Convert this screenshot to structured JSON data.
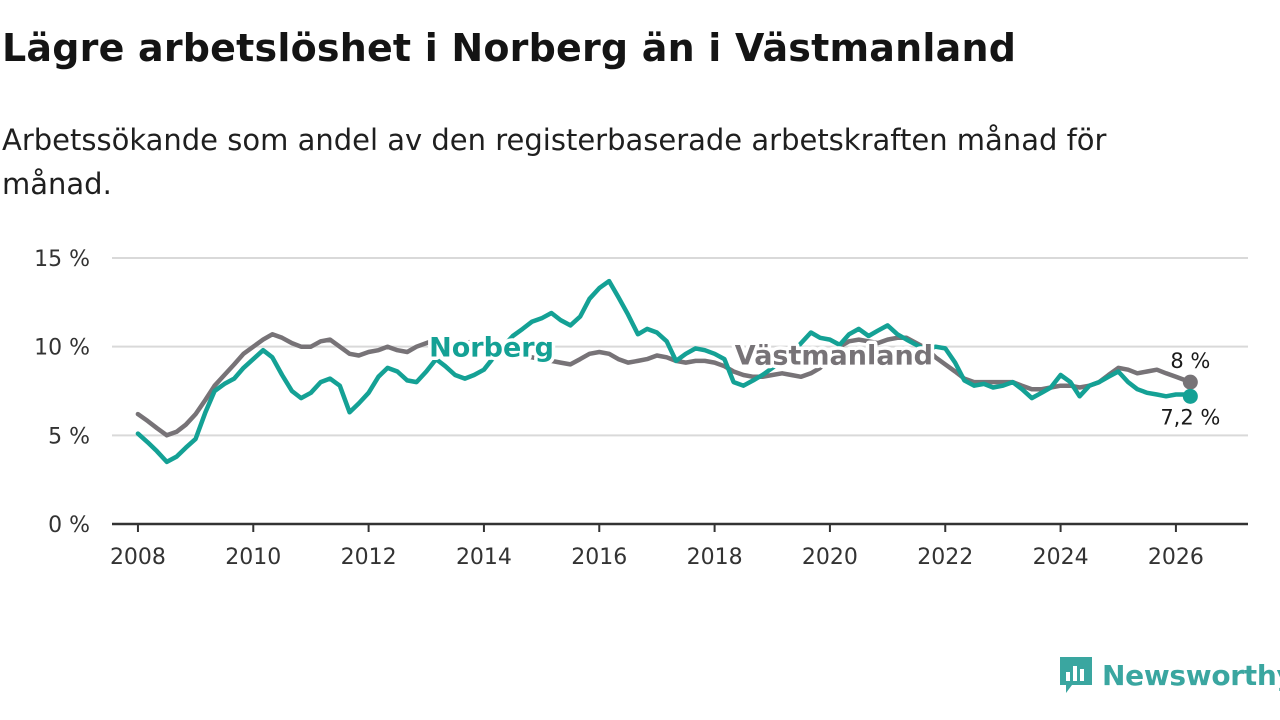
{
  "title": "Lägre arbetslöshet i Norberg än i Västmanland",
  "subtitle": "Arbetssökande som andel av den registerbaserade arbetskraften månad för månad.",
  "brand": {
    "name": "Newsworthy",
    "icon": "newsworthy-logo-icon",
    "color": "#3aa6a0"
  },
  "chart_data": {
    "type": "line",
    "title": "Lägre arbetslöshet i Norberg än i Västmanland",
    "xlabel": "",
    "ylabel": "",
    "ylim": [
      0,
      15
    ],
    "xlim": [
      2007.55,
      2027.25
    ],
    "grid": true,
    "yticks": [
      {
        "value": 0,
        "label": "0 %"
      },
      {
        "value": 5,
        "label": "5 %"
      },
      {
        "value": 10,
        "label": "10 %"
      },
      {
        "value": 15,
        "label": "15 %"
      }
    ],
    "xticks": [
      {
        "value": 2008,
        "label": "2008"
      },
      {
        "value": 2010,
        "label": "2010"
      },
      {
        "value": 2012,
        "label": "2012"
      },
      {
        "value": 2014,
        "label": "2014"
      },
      {
        "value": 2016,
        "label": "2016"
      },
      {
        "value": 2018,
        "label": "2018"
      },
      {
        "value": 2020,
        "label": "2020"
      },
      {
        "value": 2022,
        "label": "2022"
      },
      {
        "value": 2024,
        "label": "2024"
      },
      {
        "value": 2026,
        "label": "2026"
      }
    ],
    "series": [
      {
        "name": "Västmanland",
        "color": "#777377",
        "label": "Västmanland",
        "end_label": "8 %",
        "points": [
          [
            2008.0,
            6.2
          ],
          [
            2008.17,
            5.8
          ],
          [
            2008.33,
            5.4
          ],
          [
            2008.5,
            5.0
          ],
          [
            2008.67,
            5.2
          ],
          [
            2008.83,
            5.6
          ],
          [
            2009.0,
            6.2
          ],
          [
            2009.17,
            7.0
          ],
          [
            2009.33,
            7.8
          ],
          [
            2009.5,
            8.4
          ],
          [
            2009.67,
            9.0
          ],
          [
            2009.83,
            9.6
          ],
          [
            2010.0,
            10.0
          ],
          [
            2010.17,
            10.4
          ],
          [
            2010.33,
            10.7
          ],
          [
            2010.5,
            10.5
          ],
          [
            2010.67,
            10.2
          ],
          [
            2010.83,
            10.0
          ],
          [
            2011.0,
            10.0
          ],
          [
            2011.17,
            10.3
          ],
          [
            2011.33,
            10.4
          ],
          [
            2011.5,
            10.0
          ],
          [
            2011.67,
            9.6
          ],
          [
            2011.83,
            9.5
          ],
          [
            2012.0,
            9.7
          ],
          [
            2012.17,
            9.8
          ],
          [
            2012.33,
            10.0
          ],
          [
            2012.5,
            9.8
          ],
          [
            2012.67,
            9.7
          ],
          [
            2012.83,
            10.0
          ],
          [
            2013.0,
            10.2
          ],
          [
            2013.17,
            10.4
          ],
          [
            2013.33,
            10.3
          ],
          [
            2013.5,
            10.1
          ],
          [
            2013.67,
            10.2
          ],
          [
            2013.83,
            10.3
          ],
          [
            2014.0,
            10.2
          ],
          [
            2014.17,
            10.0
          ],
          [
            2014.33,
            9.9
          ],
          [
            2014.5,
            9.7
          ],
          [
            2014.67,
            9.5
          ],
          [
            2014.83,
            9.4
          ],
          [
            2015.0,
            9.3
          ],
          [
            2015.17,
            9.2
          ],
          [
            2015.33,
            9.1
          ],
          [
            2015.5,
            9.0
          ],
          [
            2015.67,
            9.3
          ],
          [
            2015.83,
            9.6
          ],
          [
            2016.0,
            9.7
          ],
          [
            2016.17,
            9.6
          ],
          [
            2016.33,
            9.3
          ],
          [
            2016.5,
            9.1
          ],
          [
            2016.67,
            9.2
          ],
          [
            2016.83,
            9.3
          ],
          [
            2017.0,
            9.5
          ],
          [
            2017.17,
            9.4
          ],
          [
            2017.33,
            9.2
          ],
          [
            2017.5,
            9.1
          ],
          [
            2017.67,
            9.2
          ],
          [
            2017.83,
            9.2
          ],
          [
            2018.0,
            9.1
          ],
          [
            2018.17,
            8.9
          ],
          [
            2018.33,
            8.6
          ],
          [
            2018.5,
            8.4
          ],
          [
            2018.67,
            8.3
          ],
          [
            2018.83,
            8.3
          ],
          [
            2019.0,
            8.4
          ],
          [
            2019.17,
            8.5
          ],
          [
            2019.33,
            8.4
          ],
          [
            2019.5,
            8.3
          ],
          [
            2019.67,
            8.5
          ],
          [
            2019.83,
            8.8
          ],
          [
            2020.0,
            9.4
          ],
          [
            2020.17,
            10.0
          ],
          [
            2020.33,
            10.3
          ],
          [
            2020.5,
            10.4
          ],
          [
            2020.67,
            10.3
          ],
          [
            2020.83,
            10.2
          ],
          [
            2021.0,
            10.4
          ],
          [
            2021.17,
            10.5
          ],
          [
            2021.33,
            10.5
          ],
          [
            2021.5,
            10.2
          ],
          [
            2021.67,
            9.9
          ],
          [
            2021.83,
            9.4
          ],
          [
            2022.0,
            9.0
          ],
          [
            2022.17,
            8.6
          ],
          [
            2022.33,
            8.2
          ],
          [
            2022.5,
            8.0
          ],
          [
            2022.67,
            8.0
          ],
          [
            2022.83,
            8.0
          ],
          [
            2023.0,
            8.0
          ],
          [
            2023.17,
            8.0
          ],
          [
            2023.33,
            7.8
          ],
          [
            2023.5,
            7.6
          ],
          [
            2023.67,
            7.6
          ],
          [
            2023.83,
            7.7
          ],
          [
            2024.0,
            7.8
          ],
          [
            2024.17,
            7.8
          ],
          [
            2024.33,
            7.7
          ],
          [
            2024.5,
            7.8
          ],
          [
            2024.67,
            8.0
          ],
          [
            2024.83,
            8.4
          ],
          [
            2025.0,
            8.8
          ],
          [
            2025.17,
            8.7
          ],
          [
            2025.33,
            8.5
          ],
          [
            2025.5,
            8.6
          ],
          [
            2025.67,
            8.7
          ],
          [
            2025.83,
            8.5
          ],
          [
            2026.0,
            8.3
          ],
          [
            2026.17,
            8.1
          ],
          [
            2026.25,
            8.0
          ]
        ]
      },
      {
        "name": "Norberg",
        "color": "#14a195",
        "label": "Norberg",
        "end_label": "7,2 %",
        "points": [
          [
            2008.0,
            5.1
          ],
          [
            2008.17,
            4.6
          ],
          [
            2008.33,
            4.1
          ],
          [
            2008.5,
            3.5
          ],
          [
            2008.67,
            3.8
          ],
          [
            2008.83,
            4.3
          ],
          [
            2009.0,
            4.8
          ],
          [
            2009.17,
            6.3
          ],
          [
            2009.33,
            7.5
          ],
          [
            2009.5,
            7.9
          ],
          [
            2009.67,
            8.2
          ],
          [
            2009.83,
            8.8
          ],
          [
            2010.0,
            9.3
          ],
          [
            2010.17,
            9.8
          ],
          [
            2010.33,
            9.4
          ],
          [
            2010.5,
            8.4
          ],
          [
            2010.67,
            7.5
          ],
          [
            2010.83,
            7.1
          ],
          [
            2011.0,
            7.4
          ],
          [
            2011.17,
            8.0
          ],
          [
            2011.33,
            8.2
          ],
          [
            2011.5,
            7.8
          ],
          [
            2011.67,
            6.3
          ],
          [
            2011.83,
            6.8
          ],
          [
            2012.0,
            7.4
          ],
          [
            2012.17,
            8.3
          ],
          [
            2012.33,
            8.8
          ],
          [
            2012.5,
            8.6
          ],
          [
            2012.67,
            8.1
          ],
          [
            2012.83,
            8.0
          ],
          [
            2013.0,
            8.6
          ],
          [
            2013.17,
            9.3
          ],
          [
            2013.33,
            8.9
          ],
          [
            2013.5,
            8.4
          ],
          [
            2013.67,
            8.2
          ],
          [
            2013.83,
            8.4
          ],
          [
            2014.0,
            8.7
          ],
          [
            2014.17,
            9.4
          ],
          [
            2014.33,
            10.0
          ],
          [
            2014.5,
            10.6
          ],
          [
            2014.67,
            11.0
          ],
          [
            2014.83,
            11.4
          ],
          [
            2015.0,
            11.6
          ],
          [
            2015.17,
            11.9
          ],
          [
            2015.33,
            11.5
          ],
          [
            2015.5,
            11.2
          ],
          [
            2015.67,
            11.7
          ],
          [
            2015.83,
            12.7
          ],
          [
            2016.0,
            13.3
          ],
          [
            2016.17,
            13.7
          ],
          [
            2016.33,
            12.8
          ],
          [
            2016.5,
            11.8
          ],
          [
            2016.67,
            10.7
          ],
          [
            2016.83,
            11.0
          ],
          [
            2017.0,
            10.8
          ],
          [
            2017.17,
            10.3
          ],
          [
            2017.33,
            9.2
          ],
          [
            2017.5,
            9.6
          ],
          [
            2017.67,
            9.9
          ],
          [
            2017.83,
            9.8
          ],
          [
            2018.0,
            9.6
          ],
          [
            2018.17,
            9.3
          ],
          [
            2018.33,
            8.0
          ],
          [
            2018.5,
            7.8
          ],
          [
            2018.67,
            8.1
          ],
          [
            2018.83,
            8.4
          ],
          [
            2019.0,
            8.8
          ],
          [
            2019.17,
            9.2
          ],
          [
            2019.33,
            9.6
          ],
          [
            2019.5,
            10.2
          ],
          [
            2019.67,
            10.8
          ],
          [
            2019.83,
            10.5
          ],
          [
            2020.0,
            10.4
          ],
          [
            2020.17,
            10.1
          ],
          [
            2020.33,
            10.7
          ],
          [
            2020.5,
            11.0
          ],
          [
            2020.67,
            10.6
          ],
          [
            2020.83,
            10.9
          ],
          [
            2021.0,
            11.2
          ],
          [
            2021.17,
            10.7
          ],
          [
            2021.33,
            10.4
          ],
          [
            2021.5,
            10.1
          ],
          [
            2021.67,
            9.8
          ],
          [
            2021.83,
            10.0
          ],
          [
            2022.0,
            9.9
          ],
          [
            2022.17,
            9.1
          ],
          [
            2022.33,
            8.1
          ],
          [
            2022.5,
            7.8
          ],
          [
            2022.67,
            7.9
          ],
          [
            2022.83,
            7.7
          ],
          [
            2023.0,
            7.8
          ],
          [
            2023.17,
            8.0
          ],
          [
            2023.33,
            7.6
          ],
          [
            2023.5,
            7.1
          ],
          [
            2023.67,
            7.4
          ],
          [
            2023.83,
            7.7
          ],
          [
            2024.0,
            8.4
          ],
          [
            2024.17,
            8.0
          ],
          [
            2024.33,
            7.2
          ],
          [
            2024.5,
            7.8
          ],
          [
            2024.67,
            8.0
          ],
          [
            2024.83,
            8.3
          ],
          [
            2025.0,
            8.6
          ],
          [
            2025.17,
            8.0
          ],
          [
            2025.33,
            7.6
          ],
          [
            2025.5,
            7.4
          ],
          [
            2025.67,
            7.3
          ],
          [
            2025.83,
            7.2
          ],
          [
            2026.0,
            7.3
          ],
          [
            2026.17,
            7.3
          ],
          [
            2026.25,
            7.2
          ]
        ]
      }
    ]
  }
}
